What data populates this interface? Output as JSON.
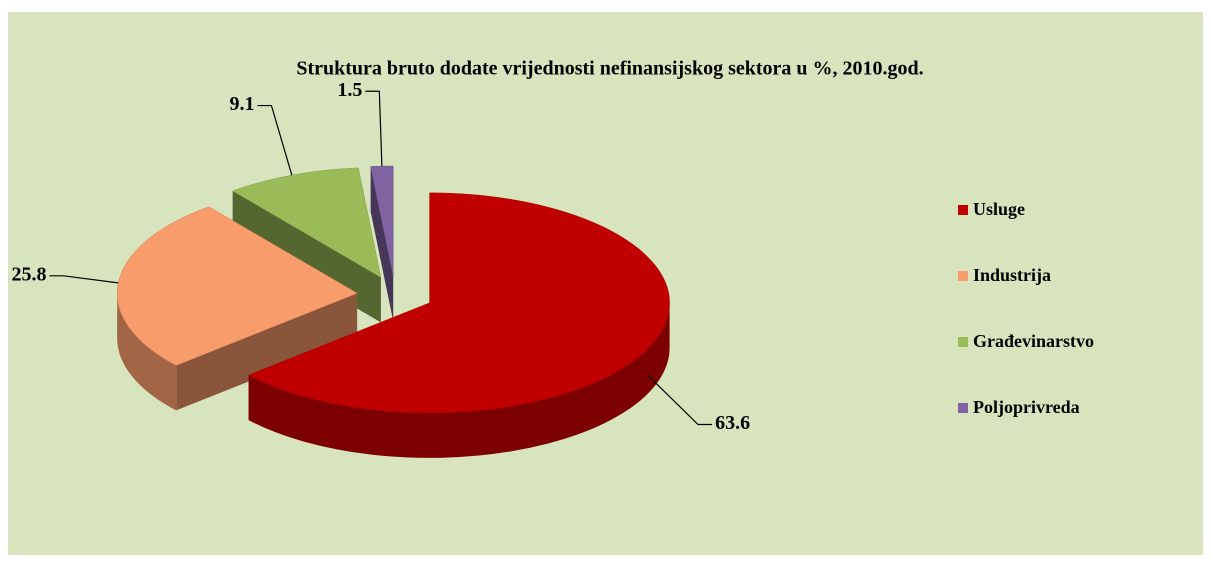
{
  "chart_data": {
    "type": "pie3d",
    "title": "Struktura bruto dodate vrijednosti nefinansijskog sektora u  %, 2010.god.",
    "categories": [
      "Usluge",
      "Industrija",
      "Građevinarstvo",
      "Poljoprivreda"
    ],
    "values": [
      63.6,
      25.8,
      9.1,
      1.5
    ],
    "colors": [
      "#c00000",
      "#f99c6b",
      "#9bbb59",
      "#8064a2"
    ],
    "legend": "right"
  }
}
